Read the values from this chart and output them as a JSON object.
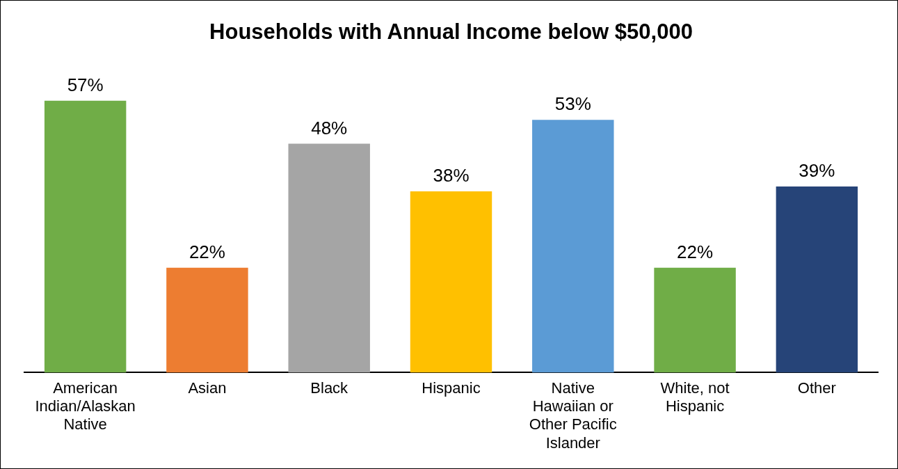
{
  "chart_data": {
    "type": "bar",
    "title": "Households with Annual Income below $50,000",
    "categories": [
      "American Indian/Alaskan Native",
      "Asian",
      "Black",
      "Hispanic",
      "Native Hawaiian or Other Pacific Islander",
      "White, not Hispanic",
      "Other"
    ],
    "values": [
      57,
      22,
      48,
      38,
      53,
      22,
      39
    ],
    "value_labels": [
      "57%",
      "22%",
      "48%",
      "38%",
      "53%",
      "22%",
      "39%"
    ],
    "colors": [
      "#70ad47",
      "#ed7d31",
      "#a5a5a5",
      "#ffc000",
      "#5b9bd5",
      "#70ad47",
      "#264478"
    ],
    "legend": false
  }
}
